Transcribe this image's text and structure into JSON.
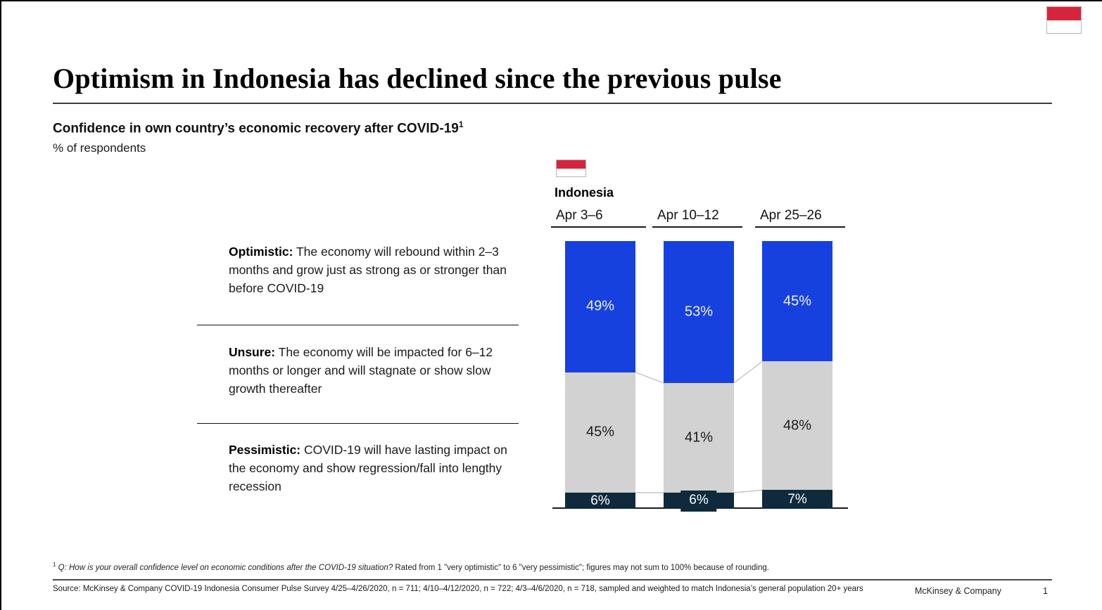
{
  "slide": {
    "title": "Optimism in Indonesia has declined since the previous pulse",
    "subtitle": "Confidence in own country’s economic recovery after COVID-19",
    "subtitle_superscript": "1",
    "unit_label": "% of respondents"
  },
  "legend": {
    "items": [
      {
        "label": "Optimistic:",
        "description": " The economy will rebound within 2–3 months and grow just as strong as or stronger than before COVID-19",
        "color": "#1741df"
      },
      {
        "label": "Unsure:",
        "description": " The economy will be impacted for 6–12 months or longer and will stagnate or show slow growth thereafter",
        "color": "#d2d2d2"
      },
      {
        "label": "Pessimistic:",
        "description": " COVID-19 will have lasting impact on the economy and show regression/fall into lengthy recession",
        "color": "#0e2a3c"
      }
    ]
  },
  "chart_data": {
    "type": "bar",
    "stacked": true,
    "orientation": "vertical",
    "group_label": "Indonesia",
    "categories": [
      "Apr 3–6",
      "Apr 10–12",
      "Apr 25–26"
    ],
    "series": [
      {
        "name": "Optimistic",
        "color": "#1741df",
        "values": [
          49,
          53,
          45
        ]
      },
      {
        "name": "Unsure",
        "color": "#d2d2d2",
        "values": [
          45,
          41,
          48
        ]
      },
      {
        "name": "Pessimistic",
        "color": "#0e2a3c",
        "values": [
          6,
          6,
          7
        ]
      }
    ],
    "value_suffix": "%",
    "ylim": [
      0,
      100
    ],
    "grid": false,
    "legend_position": "left",
    "connector_color": "#c6c6c6"
  },
  "footnote": {
    "marker": "1",
    "question": "Q: How is your overall confidence level on economic conditions after the COVID-19 situation?",
    "rest": " Rated from 1 \"very optimistic\" to 6 \"very pessimistic\"; figures may not sum to 100% because of rounding."
  },
  "source": {
    "text": "Source: McKinsey & Company COVID-19 Indonesia Consumer Pulse Survey 4/25–4/26/2020, n = 711; 4/10–4/12/2020, n = 722; 4/3–4/6/2020, n = 718, sampled and weighted to match Indonesia’s general population 20+ years"
  },
  "footer": {
    "brand": "McKinsey & Company",
    "page_number": "1"
  },
  "icons": {
    "flag": "indonesia-flag-icon",
    "flag_red": "#d6243e"
  }
}
